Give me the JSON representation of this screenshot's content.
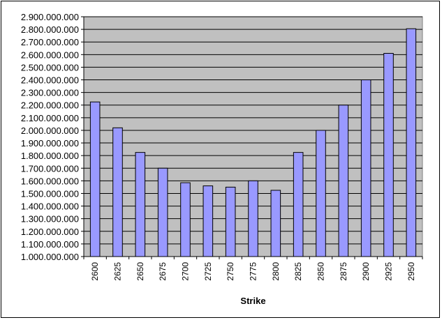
{
  "chart_data": {
    "type": "bar",
    "title": "",
    "xlabel": "Strike",
    "ylabel": "",
    "ylim": [
      1000000000,
      2900000000
    ],
    "ytick_step": 100000000,
    "grid": true,
    "legend": "none",
    "categories": [
      "2600",
      "2625",
      "2650",
      "2675",
      "2700",
      "2725",
      "2750",
      "2775",
      "2800",
      "2825",
      "2850",
      "2875",
      "2900",
      "2925",
      "2950"
    ],
    "values": [
      2225000000,
      2020000000,
      1825000000,
      1700000000,
      1585000000,
      1560000000,
      1550000000,
      1600000000,
      1525000000,
      1825000000,
      2000000000,
      2200000000,
      2400000000,
      2610000000,
      2805000000
    ],
    "colors": {
      "plot_background": "#c0c0c0",
      "bar_fill": "#9999ff",
      "bar_stroke": "#000000",
      "grid": "#000000"
    }
  }
}
